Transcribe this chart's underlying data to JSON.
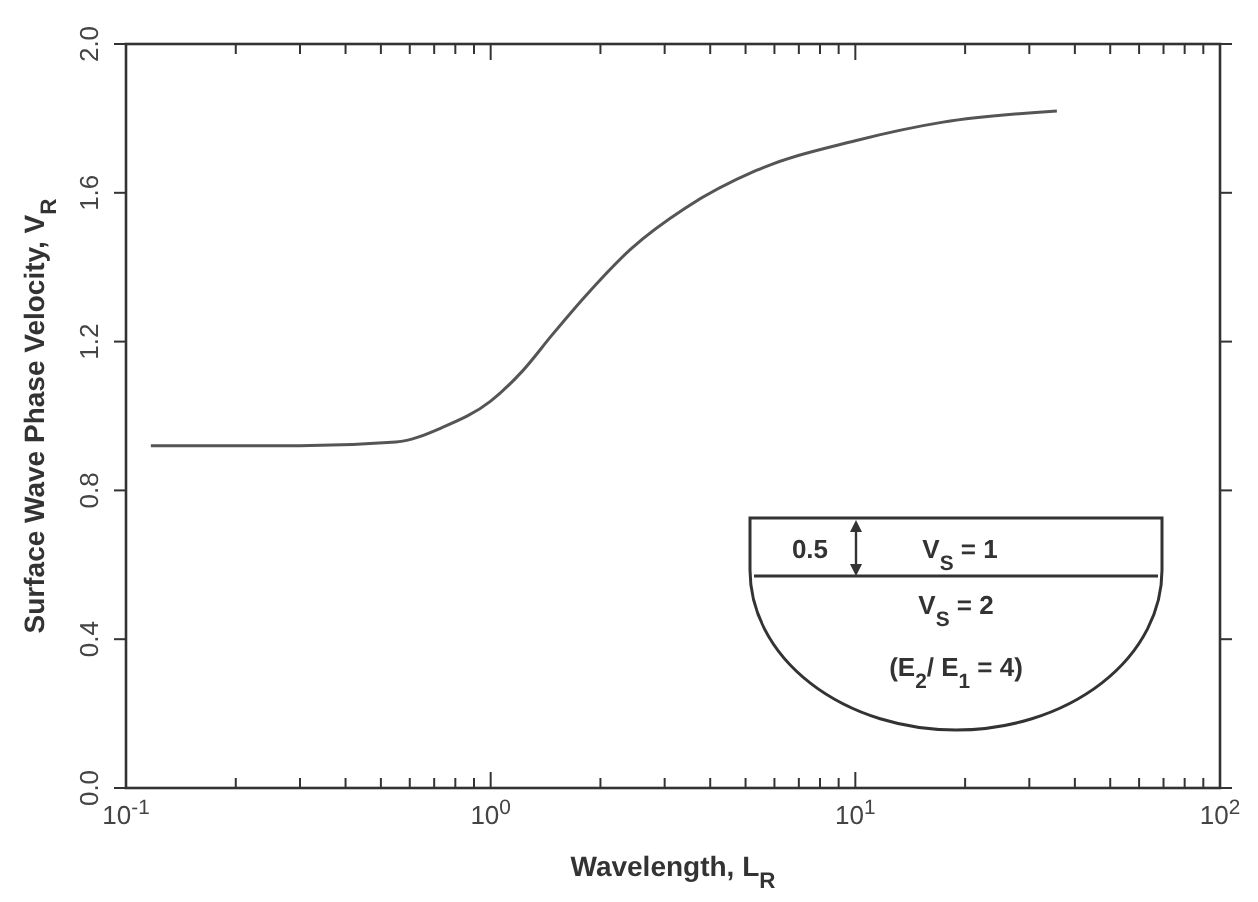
{
  "chart_data": {
    "type": "line",
    "xlabel": "Wavelength, L$_{R}$",
    "ylabel": "Surface Wave Phase Velocity, V$_{R}$",
    "log": "x",
    "xlim": [
      0.1,
      100
    ],
    "ylim": [
      0,
      2
    ],
    "xticks": [
      {
        "value": 0.1,
        "label": "10$^{-1}$"
      },
      {
        "value": 0.2,
        "label": null
      },
      {
        "value": 0.3,
        "label": null
      },
      {
        "value": 0.4,
        "label": null
      },
      {
        "value": 0.5,
        "label": null
      },
      {
        "value": 0.6,
        "label": null
      },
      {
        "value": 0.7,
        "label": null
      },
      {
        "value": 0.8,
        "label": null
      },
      {
        "value": 0.9,
        "label": null
      },
      {
        "value": 1,
        "label": "10$^{0}$"
      },
      {
        "value": 2,
        "label": null
      },
      {
        "value": 3,
        "label": null
      },
      {
        "value": 4,
        "label": null
      },
      {
        "value": 5,
        "label": null
      },
      {
        "value": 6,
        "label": null
      },
      {
        "value": 7,
        "label": null
      },
      {
        "value": 8,
        "label": null
      },
      {
        "value": 9,
        "label": null
      },
      {
        "value": 10,
        "label": "10$^{1}$"
      },
      {
        "value": 20,
        "label": null
      },
      {
        "value": 30,
        "label": null
      },
      {
        "value": 40,
        "label": null
      },
      {
        "value": 50,
        "label": null
      },
      {
        "value": 60,
        "label": null
      },
      {
        "value": 70,
        "label": null
      },
      {
        "value": 80,
        "label": null
      },
      {
        "value": 90,
        "label": null
      },
      {
        "value": 100,
        "label": "10$^{2}$"
      }
    ],
    "yticks": [
      {
        "value": 0,
        "label": "0.0"
      },
      0.4,
      0.8,
      1.2,
      1.6,
      {
        "value": 2,
        "label": "2.0"
      }
    ],
    "grid": false,
    "marker": "none",
    "line_style": "solid",
    "series": [
      {
        "color": "#555555",
        "x": [
          0.117,
          0.3,
          0.55,
          0.74,
          1.0,
          1.22,
          1.48,
          1.81,
          2.43,
          3.43,
          5.35,
          10,
          17.4,
          35.7
        ],
        "values": [
          0.92,
          0.92,
          0.93,
          0.97,
          1.04,
          1.12,
          1.22,
          1.32,
          1.45,
          1.56,
          1.66,
          1.74,
          1.79,
          1.82
        ]
      }
    ],
    "annotations": [
      "0.5",
      "V$_{S}$ = 1",
      "V$_{S}$ = 2",
      "(E$_{2}$/ E$_{1}$ = 4)"
    ]
  }
}
